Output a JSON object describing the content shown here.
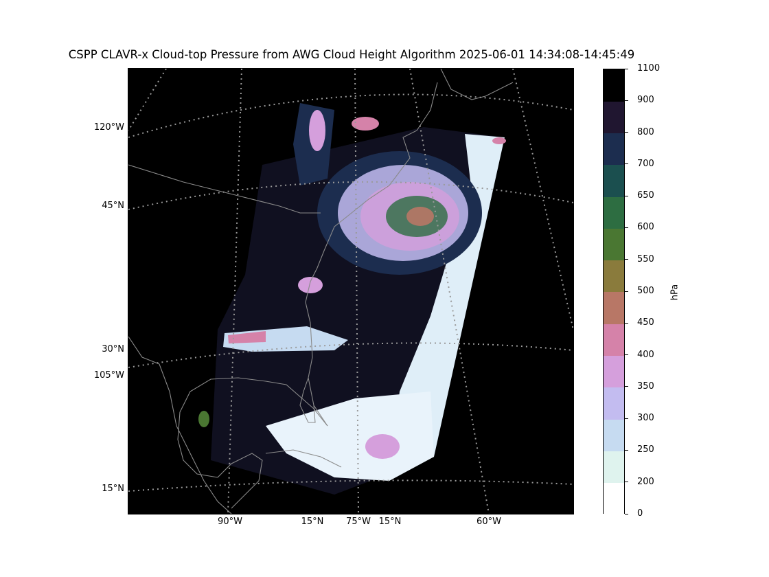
{
  "title": "CSPP CLAVR-x Cloud-top Pressure from AWG Cloud Height Algorithm 2025-06-01 14:34:08-14:45:49",
  "map": {
    "background_color": "#000000",
    "graticule_color": "#9a9a9a",
    "coastline_color": "#8a8a8a",
    "left_labels": [
      "120°W",
      "45°N",
      "30°N",
      "105°W",
      "15°N"
    ],
    "bottom_labels": [
      "90°W",
      "15°N",
      "75°W",
      "15°N",
      "60°W"
    ]
  },
  "colorbar": {
    "unit": "hPa",
    "ticks": [
      "0",
      "200",
      "250",
      "300",
      "350",
      "400",
      "450",
      "500",
      "550",
      "600",
      "650",
      "700",
      "800",
      "900",
      "1100"
    ],
    "colors": [
      "#ffffff",
      "#dff3ee",
      "#c6dbf1",
      "#c3bcf0",
      "#d59fdc",
      "#d582a9",
      "#b87766",
      "#8a7b3c",
      "#4a7732",
      "#2d6d41",
      "#1b4f4f",
      "#1c2d4f",
      "#201630",
      "#000000"
    ]
  }
}
